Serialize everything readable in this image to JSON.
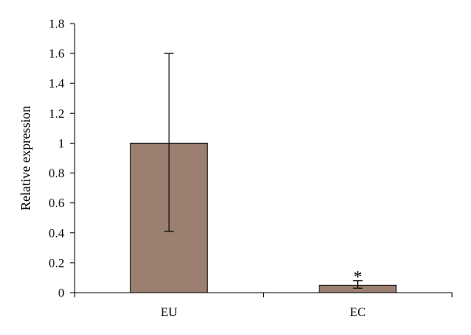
{
  "chart_data": {
    "type": "bar",
    "title": "",
    "xlabel": "",
    "ylabel": "Relative expression",
    "categories": [
      "EU",
      "EC"
    ],
    "values": [
      1.0,
      0.05
    ],
    "error_bars": [
      {
        "low": 0.41,
        "high": 1.6
      },
      {
        "low": 0.03,
        "high": 0.08
      }
    ],
    "annotations": [
      "",
      "*"
    ],
    "ylim": [
      0,
      1.8
    ],
    "y_ticks": [
      0,
      0.2,
      0.4,
      0.6,
      0.8,
      1,
      1.2,
      1.4,
      1.6,
      1.8
    ],
    "y_tick_labels": [
      "0",
      "0.2",
      "0.4",
      "0.6",
      "0.8",
      "1",
      "1.2",
      "1.4",
      "1.6",
      "1.8"
    ],
    "grid": false,
    "legend": "none",
    "colors": {
      "bar_fill": "#9B7F70",
      "bar_stroke": "#000000",
      "axis": "#000000"
    }
  }
}
